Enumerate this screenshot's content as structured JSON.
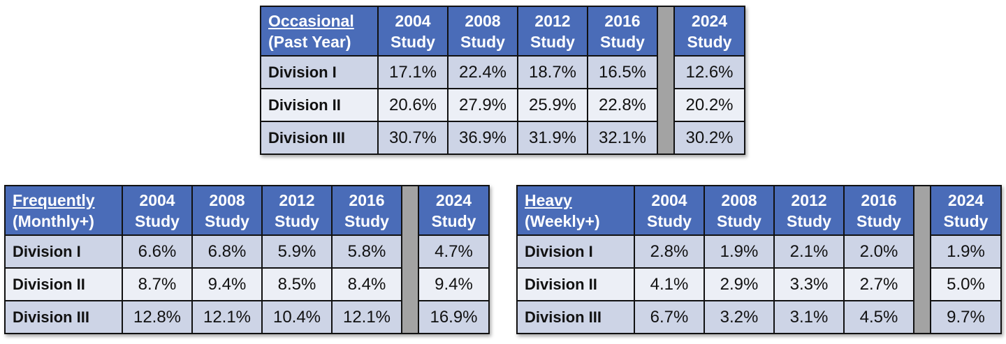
{
  "columns": [
    "2004 Study",
    "2008 Study",
    "2012 Study",
    "2016 Study",
    "2024 Study"
  ],
  "columns_split": [
    [
      "2004",
      "Study"
    ],
    [
      "2008",
      "Study"
    ],
    [
      "2012",
      "Study"
    ],
    [
      "2016",
      "Study"
    ],
    [
      "2024",
      "Study"
    ]
  ],
  "tables": {
    "occasional": {
      "title": "Occasional",
      "subtitle": "(Past Year)",
      "rows": [
        {
          "label": "Division I",
          "values": [
            "17.1%",
            "22.4%",
            "18.7%",
            "16.5%",
            "12.6%"
          ]
        },
        {
          "label": "Division II",
          "values": [
            "20.6%",
            "27.9%",
            "25.9%",
            "22.8%",
            "20.2%"
          ]
        },
        {
          "label": "Division III",
          "values": [
            "30.7%",
            "36.9%",
            "31.9%",
            "32.1%",
            "30.2%"
          ]
        }
      ]
    },
    "frequently": {
      "title": "Frequently",
      "subtitle": "(Monthly+)",
      "rows": [
        {
          "label": "Division I",
          "values": [
            "6.6%",
            "6.8%",
            "5.9%",
            "5.8%",
            "4.7%"
          ]
        },
        {
          "label": "Division II",
          "values": [
            "8.7%",
            "9.4%",
            "8.5%",
            "8.4%",
            "9.4%"
          ]
        },
        {
          "label": "Division III",
          "values": [
            "12.8%",
            "12.1%",
            "10.4%",
            "12.1%",
            "16.9%"
          ]
        }
      ]
    },
    "heavy": {
      "title": "Heavy",
      "subtitle": "(Weekly+)",
      "rows": [
        {
          "label": "Division I",
          "values": [
            "2.8%",
            "1.9%",
            "2.1%",
            "2.0%",
            "1.9%"
          ]
        },
        {
          "label": "Division II",
          "values": [
            "4.1%",
            "2.9%",
            "3.3%",
            "2.7%",
            "5.0%"
          ]
        },
        {
          "label": "Division III",
          "values": [
            "6.7%",
            "3.2%",
            "3.1%",
            "4.5%",
            "9.7%"
          ]
        }
      ]
    }
  },
  "colors": {
    "header_bg": "#4a6cb8",
    "header_text": "#ffffff",
    "row_dark": "#cdd4e6",
    "row_light": "#eceff6",
    "separator": "#a3a3a3"
  }
}
